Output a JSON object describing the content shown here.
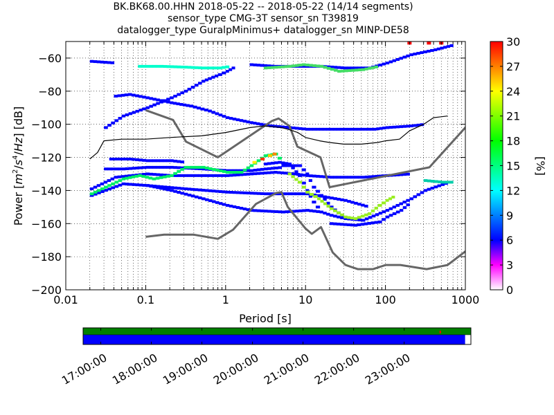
{
  "title_lines": [
    "BK.BK68.00.HHN   2018-05-22 -- 2018-05-22  (14/14 segments)",
    "sensor_type CMG-3T sensor_sn T39819",
    "datalogger_type GuralpMinimus+ datalogger_sn MINP-DE58"
  ],
  "chart_data": [
    {
      "type": "heatmap",
      "xlabel": "Period [s]",
      "ylabel": "Power [m²/s⁴/Hz] [dB]",
      "x_scale": "log",
      "xlim": [
        0.01,
        1000
      ],
      "ylim": [
        -200,
        -50
      ],
      "x_ticks": [
        0.01,
        0.1,
        1,
        10,
        100,
        1000
      ],
      "x_tick_labels": [
        "0.01",
        "0.1",
        "1",
        "10",
        "100",
        "1000"
      ],
      "y_ticks": [
        -200,
        -180,
        -160,
        -140,
        -120,
        -100,
        -80,
        -60
      ],
      "y_tick_labels": [
        "−200",
        "−180",
        "−160",
        "−140",
        "−120",
        "−100",
        "−80",
        "−60"
      ],
      "colorbar": {
        "label": "[%]",
        "range": [
          0,
          30
        ],
        "ticks": [
          0,
          3,
          6,
          9,
          12,
          15,
          18,
          21,
          24,
          27,
          30
        ],
        "tick_labels": [
          "0",
          "3",
          "6",
          "9",
          "12",
          "15",
          "18",
          "21",
          "24",
          "27",
          "30"
        ],
        "colormap": [
          "#ffffff",
          "#ff00ff",
          "#0000ff",
          "#00ffff",
          "#00ff00",
          "#ffff00",
          "#ff0000"
        ]
      },
      "series": [
        {
          "style": "gray",
          "color": "#666666",
          "x": [
            0.1,
            0.22,
            0.32,
            0.8,
            3.8,
            4.6,
            6.3,
            7.9,
            15.4,
            20,
            354.8,
            10000
          ],
          "y": [
            -91.5,
            -97.4,
            -110.5,
            -120,
            -98,
            -96.5,
            -101,
            -113.5,
            -120,
            -138,
            -126,
            -48.5
          ]
        },
        {
          "style": "gray",
          "color": "#666666",
          "x": [
            0.1,
            0.17,
            0.4,
            0.8,
            1.24,
            2.4,
            4.3,
            5,
            6,
            10,
            12,
            15.6,
            21.9,
            31.6,
            45,
            70,
            101,
            154,
            328,
            600,
            10000
          ],
          "y": [
            -168,
            -166.7,
            -166.7,
            -169.2,
            -163.7,
            -148.1,
            -141.5,
            -141,
            -150,
            -163,
            -166.2,
            -162.1,
            -177.5,
            -185,
            -187.5,
            -187.5,
            -185,
            -185,
            -187.5,
            -185,
            -140
          ]
        },
        {
          "style": "mode",
          "color": "#000000",
          "x": [
            0.02,
            0.025,
            0.03,
            0.05,
            0.1,
            0.2,
            0.5,
            1,
            2,
            3,
            4,
            5,
            6,
            8,
            10,
            15,
            20,
            30,
            50,
            80,
            100,
            150,
            200,
            300,
            400,
            600
          ],
          "y": [
            -121,
            -117,
            -110,
            -109,
            -109,
            -108,
            -107,
            -105,
            -102,
            -101,
            -101.5,
            -102,
            -103,
            -105,
            -108,
            -110,
            -111,
            -112,
            -112,
            -111,
            -110,
            -109,
            -104,
            -100,
            -96,
            -95
          ]
        }
      ],
      "bands": [
        {
          "color": "#0000ff",
          "x": [
            0.04,
            0.06,
            0.1,
            0.2,
            0.35,
            0.6,
            1,
            2,
            3.5,
            6,
            10,
            20,
            40,
            70,
            100,
            200,
            300
          ],
          "y": [
            -83,
            -82,
            -84,
            -87,
            -89,
            -92,
            -96,
            -99,
            -101,
            -102,
            -103,
            -103,
            -103,
            -103,
            -102,
            -101,
            -100
          ]
        },
        {
          "color": "#0000ff",
          "x": [
            0.03,
            0.05,
            0.1,
            0.2,
            0.3,
            0.5,
            0.8,
            1,
            1.3
          ],
          "y": [
            -102,
            -95,
            -90,
            -84,
            -80,
            -74,
            -70,
            -68,
            -65
          ]
        },
        {
          "color": "#0000ff",
          "x": [
            0.02,
            0.04,
            0.1,
            0.2,
            0.5,
            1,
            2,
            4,
            7,
            10,
            20,
            50,
            100,
            200
          ],
          "y": [
            -139,
            -132,
            -130,
            -131,
            -131,
            -131,
            -130,
            -129,
            -130,
            -131,
            -132,
            -132,
            -131,
            -130
          ]
        },
        {
          "color": "#0000ff",
          "x": [
            0.03,
            0.05,
            0.1,
            0.2,
            0.5,
            1,
            2,
            3,
            5
          ],
          "y": [
            -127,
            -127,
            -126,
            -126,
            -127,
            -128,
            -128,
            -127,
            -126
          ]
        },
        {
          "color": "#0000ff",
          "x": [
            0.02,
            0.05,
            0.1,
            0.2,
            0.5,
            1,
            2,
            5,
            10,
            15,
            20,
            30
          ],
          "y": [
            -143,
            -136,
            -137,
            -140,
            -145,
            -149,
            -152,
            -153,
            -152,
            -153,
            -155,
            -157
          ]
        },
        {
          "color": "#0000ff",
          "x": [
            0.1,
            0.3,
            1,
            3,
            10,
            30,
            60
          ],
          "y": [
            -137,
            -139,
            -141,
            -142,
            -142,
            -146,
            -150
          ]
        },
        {
          "color": "#0000ff",
          "x": [
            5,
            8,
            10,
            12,
            15,
            20,
            30,
            50,
            100,
            200,
            300,
            600
          ],
          "y": [
            -125,
            -125,
            -130,
            -138,
            -143,
            -150,
            -157,
            -158,
            -152,
            -145,
            -140,
            -135
          ]
        },
        {
          "color": "#0000ff",
          "x": [
            3,
            4.5,
            6,
            8,
            10,
            12,
            15
          ],
          "y": [
            -124,
            -123,
            -124,
            -131,
            -140,
            -147,
            -153
          ]
        },
        {
          "color": "#0000ff",
          "x": [
            20,
            40,
            80,
            100,
            150,
            200
          ],
          "y": [
            -160,
            -161,
            -159,
            -156,
            -152,
            -147
          ]
        },
        {
          "color": "#0000ff",
          "x": [
            2,
            4,
            8,
            15,
            30,
            60,
            100,
            200,
            400,
            700
          ],
          "y": [
            -64,
            -65,
            -65,
            -65,
            -66,
            -66,
            -63,
            -58,
            -55,
            -52
          ]
        },
        {
          "color": "#0000ff",
          "x": [
            0.035,
            0.06,
            0.1,
            0.2,
            0.3
          ],
          "y": [
            -121,
            -121,
            -122,
            -122,
            -123
          ]
        },
        {
          "color": "#0000ff",
          "x": [
            0.02,
            0.04
          ],
          "y": [
            -62,
            -63
          ]
        },
        {
          "color": "#00ffcc",
          "x": [
            0.08,
            0.15,
            0.3,
            0.5,
            0.8,
            1.1
          ],
          "y": [
            -65,
            -65,
            -65.5,
            -66,
            -66,
            -65
          ]
        },
        {
          "color": "#00ee66",
          "x": [
            0.02,
            0.03,
            0.05,
            0.08,
            0.12,
            0.2,
            0.3,
            0.5,
            1,
            1.5,
            2,
            3,
            4,
            5
          ],
          "y": [
            -142,
            -138,
            -133,
            -131,
            -133,
            -131,
            -126,
            -126,
            -129,
            -129,
            -125,
            -119,
            -118,
            -123
          ]
        },
        {
          "color": "#99ee22",
          "x": [
            6,
            8,
            10,
            14,
            20,
            30,
            40,
            60,
            80,
            100,
            130
          ],
          "y": [
            -130,
            -135,
            -141,
            -145,
            -151,
            -156,
            -157,
            -154,
            -149,
            -146,
            -143
          ]
        },
        {
          "color": "#44dd66",
          "x": [
            3,
            6,
            9,
            15,
            25,
            50,
            80
          ],
          "y": [
            -66,
            -65,
            -64,
            -65,
            -68,
            -67,
            -65
          ]
        },
        {
          "color": "#00ccaa",
          "x": [
            300,
            500,
            700
          ],
          "y": [
            -134,
            -135,
            -135
          ]
        }
      ],
      "hot_spots": [
        {
          "x": 2.9,
          "y": -121,
          "color": "#ff3300"
        },
        {
          "x": 3.6,
          "y": -119,
          "color": "#ffcc00"
        },
        {
          "x": 4.1,
          "y": -118,
          "color": "#ff8800"
        },
        {
          "x": 200,
          "y": -51,
          "color": "#ff0000"
        },
        {
          "x": 350,
          "y": -51,
          "color": "#ff0000"
        },
        {
          "x": 500,
          "y": -51,
          "color": "#ee0000"
        },
        {
          "x": 2.3,
          "y": -123,
          "color": "#ffee00"
        }
      ]
    },
    {
      "type": "timeline",
      "x_tick_labels": [
        "17:00:00",
        "18:00:00",
        "19:00:00",
        "20:00:00",
        "21:00:00",
        "22:00:00",
        "23:00:00"
      ],
      "time_range_hours": [
        16.65,
        24.32
      ],
      "x_ticks_hours": [
        17,
        18,
        19,
        20,
        21,
        22,
        23
      ],
      "bars": [
        {
          "color": "#008000",
          "start": 16.65,
          "end": 24.32
        },
        {
          "color": "#0000ff",
          "start": 16.65,
          "end": 24.32,
          "fraction": 0.985
        }
      ],
      "red_mark_hours": 23.7
    }
  ]
}
